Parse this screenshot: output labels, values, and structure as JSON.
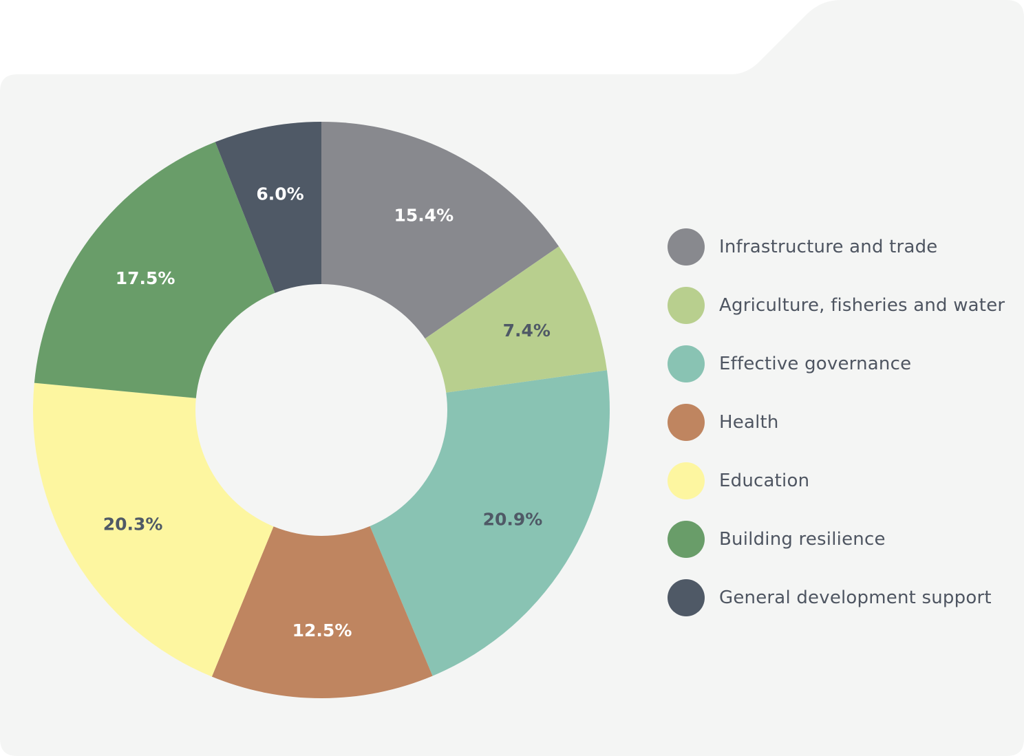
{
  "chart_data": {
    "type": "pie",
    "variant": "donut",
    "categories": [
      "Infrastructure and trade",
      "Agriculture, fisheries and water",
      "Effective governance",
      "Health",
      "Education",
      "Building resilience",
      "General development support"
    ],
    "values": [
      15.4,
      7.4,
      20.9,
      12.5,
      20.3,
      17.5,
      6.0
    ],
    "value_labels": [
      "15.4%",
      "7.4%",
      "20.9%",
      "12.5%",
      "20.3%",
      "17.5%",
      "6.0%"
    ],
    "colors": [
      "#88898e",
      "#b8cf8e",
      "#89c3b3",
      "#bf8560",
      "#fdf6a0",
      "#699d69",
      "#4f5966"
    ],
    "label_colors": [
      "#ffffff",
      "#4f5966",
      "#4f5966",
      "#ffffff",
      "#4f5966",
      "#ffffff",
      "#ffffff"
    ],
    "legend_position": "right"
  },
  "background": {
    "panel_color": "#f4f5f4",
    "page_color": "#ffffff"
  }
}
